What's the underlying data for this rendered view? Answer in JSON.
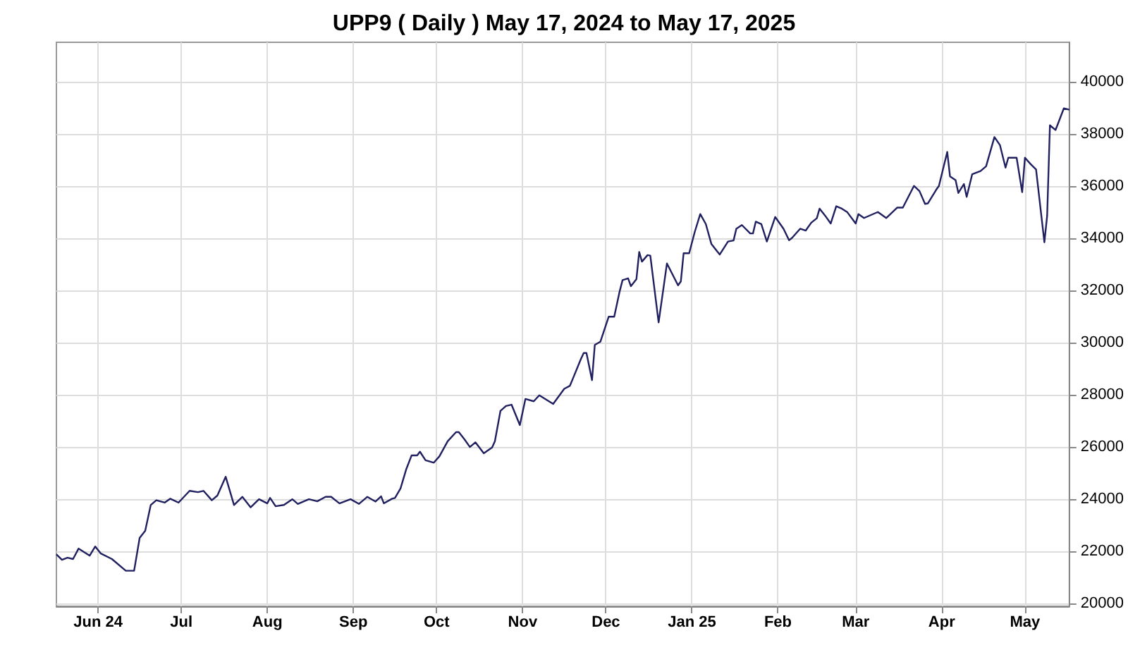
{
  "chart_data": {
    "type": "line",
    "title": "UPP9 ( Daily ) May 17, 2024 to May 17, 2025",
    "x": [
      "2024-05-17",
      "2024-05-19",
      "2024-05-21",
      "2024-05-23",
      "2024-05-25",
      "2024-05-29",
      "2024-05-31",
      "2024-06-02",
      "2024-06-06",
      "2024-06-11",
      "2024-06-14",
      "2024-06-16",
      "2024-06-18",
      "2024-06-20",
      "2024-06-22",
      "2024-06-25",
      "2024-06-27",
      "2024-06-30",
      "2024-07-04",
      "2024-07-07",
      "2024-07-09",
      "2024-07-12",
      "2024-07-14",
      "2024-07-17",
      "2024-07-20",
      "2024-07-23",
      "2024-07-26",
      "2024-07-29",
      "2024-08-01",
      "2024-08-02",
      "2024-08-04",
      "2024-08-07",
      "2024-08-10",
      "2024-08-12",
      "2024-08-16",
      "2024-08-19",
      "2024-08-22",
      "2024-08-24",
      "2024-08-27",
      "2024-08-31",
      "2024-09-03",
      "2024-09-06",
      "2024-09-09",
      "2024-09-11",
      "2024-09-12",
      "2024-09-15",
      "2024-09-16",
      "2024-09-18",
      "2024-09-20",
      "2024-09-22",
      "2024-09-24",
      "2024-09-25",
      "2024-09-27",
      "2024-09-30",
      "2024-10-02",
      "2024-10-05",
      "2024-10-08",
      "2024-10-09",
      "2024-10-11",
      "2024-10-13",
      "2024-10-15",
      "2024-10-18",
      "2024-10-21",
      "2024-10-22",
      "2024-10-24",
      "2024-10-26",
      "2024-10-28",
      "2024-10-31",
      "2024-11-02",
      "2024-11-05",
      "2024-11-07",
      "2024-11-12",
      "2024-11-16",
      "2024-11-18",
      "2024-11-19",
      "2024-11-22",
      "2024-11-23",
      "2024-11-24",
      "2024-11-26",
      "2024-11-27",
      "2024-11-29",
      "2024-12-02",
      "2024-12-04",
      "2024-12-06",
      "2024-12-07",
      "2024-12-09",
      "2024-12-10",
      "2024-12-12",
      "2024-12-13",
      "2024-12-14",
      "2024-12-16",
      "2024-12-17",
      "2024-12-20",
      "2024-12-23",
      "2024-12-27",
      "2024-12-28",
      "2024-12-29",
      "2024-12-31",
      "2025-01-02",
      "2025-01-04",
      "2025-01-06",
      "2025-01-08",
      "2025-01-11",
      "2025-01-14",
      "2025-01-16",
      "2025-01-17",
      "2025-01-19",
      "2025-01-22",
      "2025-01-23",
      "2025-01-24",
      "2025-01-26",
      "2025-01-28",
      "2025-01-31",
      "2025-02-03",
      "2025-02-05",
      "2025-02-06",
      "2025-02-09",
      "2025-02-11",
      "2025-02-13",
      "2025-02-15",
      "2025-02-16",
      "2025-02-18",
      "2025-02-20",
      "2025-02-22",
      "2025-02-24",
      "2025-02-26",
      "2025-03-01",
      "2025-03-02",
      "2025-03-04",
      "2025-03-09",
      "2025-03-12",
      "2025-03-16",
      "2025-03-18",
      "2025-03-22",
      "2025-03-24",
      "2025-03-26",
      "2025-03-27",
      "2025-03-30",
      "2025-03-31",
      "2025-04-03",
      "2025-04-04",
      "2025-04-06",
      "2025-04-07",
      "2025-04-09",
      "2025-04-10",
      "2025-04-12",
      "2025-04-15",
      "2025-04-17",
      "2025-04-20",
      "2025-04-22",
      "2025-04-24",
      "2025-04-25",
      "2025-04-28",
      "2025-04-30",
      "2025-05-01",
      "2025-05-03",
      "2025-05-05",
      "2025-05-08",
      "2025-05-09",
      "2025-05-10",
      "2025-05-12",
      "2025-05-13",
      "2025-05-15",
      "2025-05-17"
    ],
    "series": [
      {
        "color": "#202060",
        "values": [
          21890,
          21680,
          21760,
          21710,
          22110,
          21840,
          22190,
          21920,
          21710,
          21260,
          21260,
          22520,
          22790,
          23780,
          23960,
          23870,
          24020,
          23870,
          24320,
          24270,
          24320,
          23960,
          24140,
          24860,
          23780,
          24090,
          23690,
          24000,
          23840,
          24050,
          23730,
          23780,
          24000,
          23820,
          24000,
          23920,
          24090,
          24090,
          23840,
          24000,
          23820,
          24090,
          23910,
          24110,
          23840,
          24020,
          24050,
          24410,
          25130,
          25680,
          25680,
          25820,
          25490,
          25400,
          25640,
          26220,
          26570,
          26570,
          26300,
          26000,
          26180,
          25760,
          25980,
          26220,
          27380,
          27570,
          27620,
          26840,
          27840,
          27750,
          27980,
          27650,
          28230,
          28340,
          28590,
          29370,
          29600,
          29600,
          28560,
          29910,
          30030,
          30990,
          30990,
          31980,
          32390,
          32460,
          32160,
          32430,
          33470,
          33100,
          33350,
          33330,
          30770,
          33030,
          32190,
          32340,
          33420,
          33420,
          34230,
          34920,
          34540,
          33780,
          33370,
          33870,
          33910,
          34360,
          34500,
          34180,
          34180,
          34630,
          34540,
          33870,
          34810,
          34360,
          33920,
          34000,
          34360,
          34290,
          34590,
          34760,
          35130,
          34860,
          34560,
          35220,
          35130,
          34990,
          34560,
          34920,
          34770,
          35000,
          34770,
          35170,
          35170,
          36000,
          35800,
          35310,
          35330,
          35850,
          36000,
          37300,
          36360,
          36220,
          35730,
          36070,
          35580,
          36450,
          36570,
          36750,
          37870,
          37560,
          36700,
          37080,
          37080,
          35760,
          37080,
          36840,
          36630,
          33840,
          34860,
          38320,
          38140,
          38410,
          38970,
          38920
        ]
      }
    ],
    "xlim": [
      "2024-05-17",
      "2025-05-17"
    ],
    "xticks": [
      {
        "value": "2024-06-01",
        "label": "Jun 24"
      },
      {
        "value": "2024-07-01",
        "label": "Jul"
      },
      {
        "value": "2024-08-01",
        "label": "Aug"
      },
      {
        "value": "2024-09-01",
        "label": "Sep"
      },
      {
        "value": "2024-10-01",
        "label": "Oct"
      },
      {
        "value": "2024-11-01",
        "label": "Nov"
      },
      {
        "value": "2024-12-01",
        "label": "Dec"
      },
      {
        "value": "2025-01-01",
        "label": "Jan 25"
      },
      {
        "value": "2025-02-01",
        "label": "Feb"
      },
      {
        "value": "2025-03-01",
        "label": "Mar"
      },
      {
        "value": "2025-04-01",
        "label": "Apr"
      },
      {
        "value": "2025-05-01",
        "label": "May"
      }
    ],
    "ylim": [
      19900,
      41500
    ],
    "yticks": [
      20000,
      22000,
      24000,
      26000,
      28000,
      30000,
      32000,
      34000,
      36000,
      38000,
      40000
    ],
    "grid": true,
    "marker": "none",
    "line_style": "solid"
  }
}
